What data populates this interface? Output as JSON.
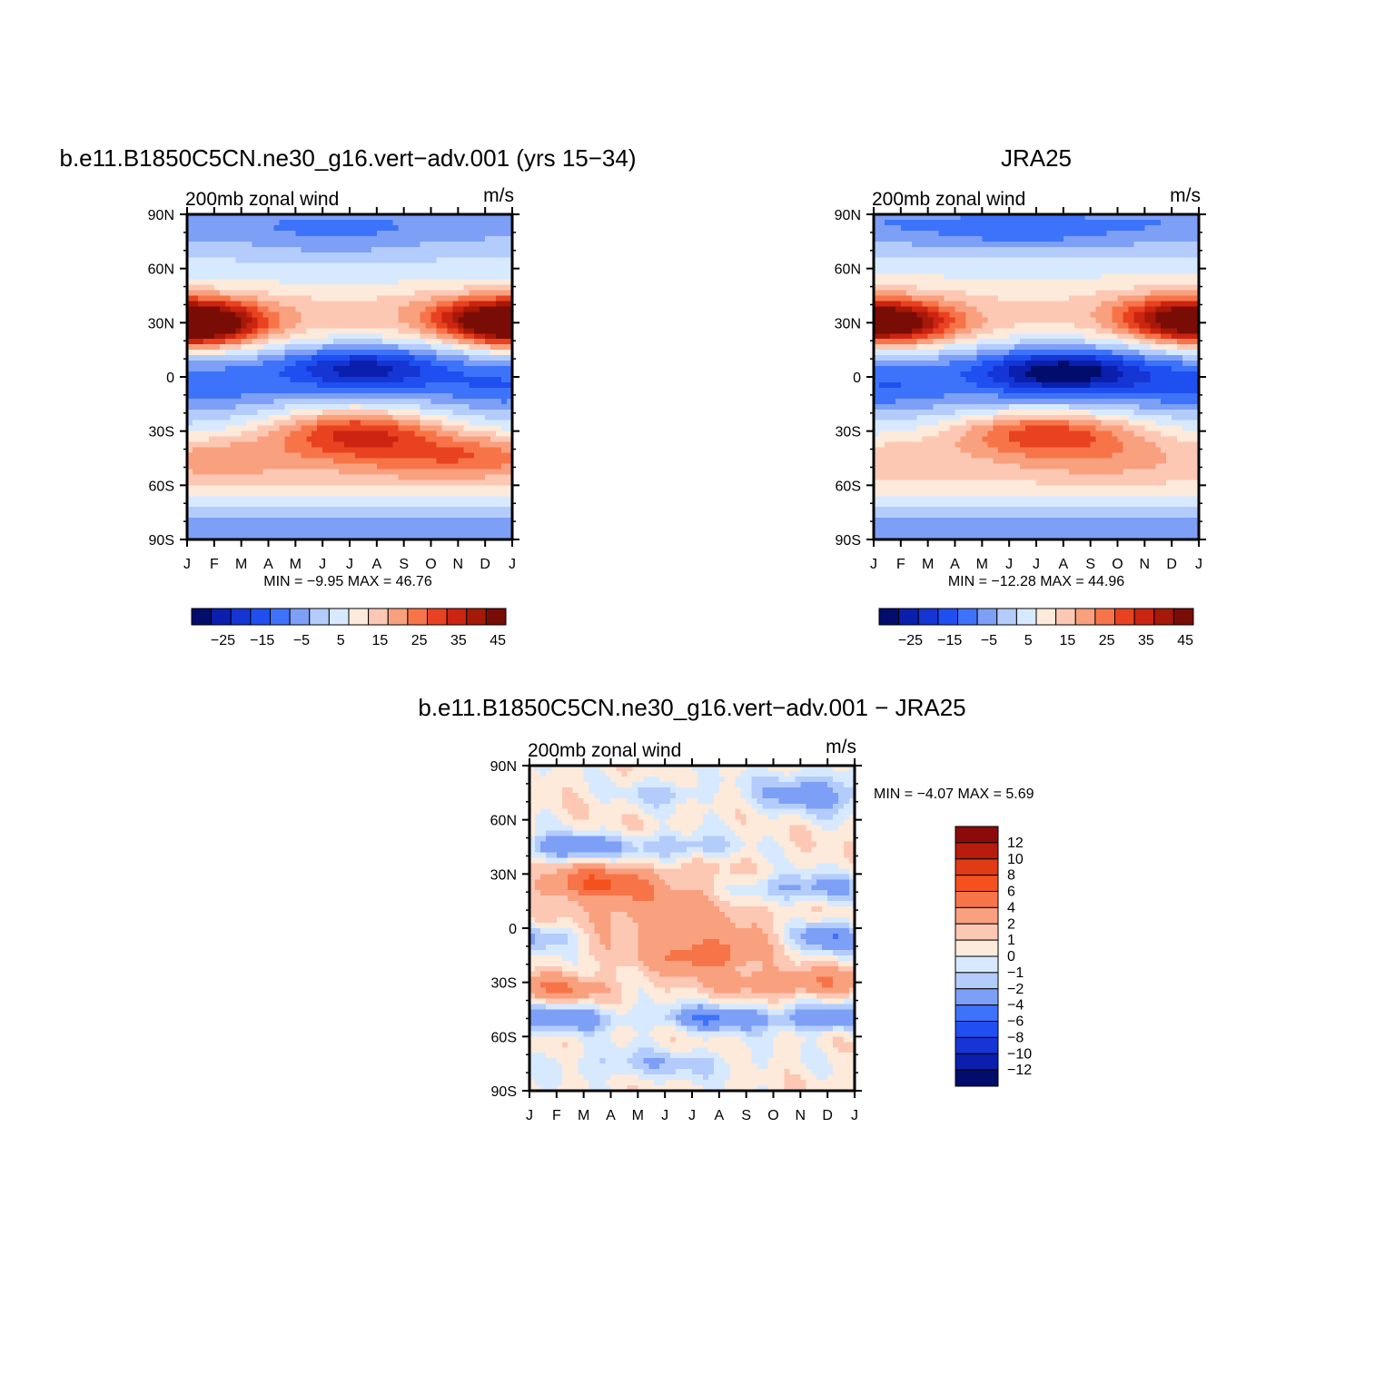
{
  "colors": {
    "abs_levels": [
      "#000d6b",
      "#0a1fae",
      "#1535d4",
      "#1f4ff0",
      "#3d73fa",
      "#7d9ff6",
      "#b3ccfc",
      "#d7e9fe",
      "#fdeadb",
      "#fcc8b4",
      "#f9a07e",
      "#f77449",
      "#e84221",
      "#cb2410",
      "#a61808",
      "#7a0c06"
    ],
    "diff_levels": [
      "#000d6b",
      "#0a1fae",
      "#1535d4",
      "#1f4ff0",
      "#3d73fa",
      "#7d9ff6",
      "#b3ccfc",
      "#d7e9fe",
      "#fdeadb",
      "#fcc8b4",
      "#f9a07e",
      "#f77449",
      "#f4511e",
      "#e03a16",
      "#b71c0c",
      "#8b0a0a"
    ]
  },
  "chart_data": [
    {
      "type": "heatmap",
      "title": "b.e11.B1850C5CN.ne30_g16.vert−adv.001 (yrs 15−34)",
      "left_label": "200mb zonal wind",
      "right_label": "m/s",
      "x_tick_labels": [
        "J",
        "F",
        "M",
        "A",
        "M",
        "J",
        "J",
        "A",
        "S",
        "O",
        "N",
        "D",
        "J"
      ],
      "y_tick_labels": [
        "90N",
        "60N",
        "30N",
        "0",
        "30S",
        "60S",
        "90S"
      ],
      "xlim": [
        0,
        12
      ],
      "ylim": [
        -90,
        90
      ],
      "stats": "MIN =   −9.95 MAX =   46.76",
      "colorbar_labels": [
        "−25",
        "−15",
        "−5",
        "5",
        "15",
        "25",
        "35",
        "45"
      ],
      "levels": [
        -30,
        -25,
        -20,
        -15,
        -10,
        -5,
        0,
        5,
        10,
        15,
        20,
        25,
        30,
        35,
        40,
        45
      ],
      "min": -9.95,
      "max": 46.76
    },
    {
      "type": "heatmap",
      "title": "JRA25",
      "left_label": "200mb zonal wind",
      "right_label": "m/s",
      "x_tick_labels": [
        "J",
        "F",
        "M",
        "A",
        "M",
        "J",
        "J",
        "A",
        "S",
        "O",
        "N",
        "D",
        "J"
      ],
      "y_tick_labels": [
        "90N",
        "60N",
        "30N",
        "0",
        "30S",
        "60S",
        "90S"
      ],
      "xlim": [
        0,
        12
      ],
      "ylim": [
        -90,
        90
      ],
      "stats": "MIN =  −12.28 MAX =   44.96",
      "colorbar_labels": [
        "−25",
        "−15",
        "−5",
        "5",
        "15",
        "25",
        "35",
        "45"
      ],
      "levels": [
        -30,
        -25,
        -20,
        -15,
        -10,
        -5,
        0,
        5,
        10,
        15,
        20,
        25,
        30,
        35,
        40,
        45
      ],
      "min": -12.28,
      "max": 44.96
    },
    {
      "type": "heatmap",
      "title": "b.e11.B1850C5CN.ne30_g16.vert−adv.001 − JRA25",
      "left_label": "200mb zonal wind",
      "right_label": "m/s",
      "x_tick_labels": [
        "J",
        "F",
        "M",
        "A",
        "M",
        "J",
        "J",
        "A",
        "S",
        "O",
        "N",
        "D",
        "J"
      ],
      "y_tick_labels": [
        "90N",
        "60N",
        "30N",
        "0",
        "30S",
        "60S",
        "90S"
      ],
      "xlim": [
        0,
        12
      ],
      "ylim": [
        -90,
        90
      ],
      "stats": "MIN =   −4.07 MAX =    5.69",
      "colorbar_labels": [
        "12",
        "10",
        "8",
        "6",
        "4",
        "2",
        "1",
        "0",
        "−1",
        "−2",
        "−4",
        "−6",
        "−8",
        "−10",
        "−12"
      ],
      "levels": [
        -12,
        -10,
        -8,
        -6,
        -4,
        -2,
        -1,
        0,
        1,
        2,
        4,
        6,
        8,
        10,
        12
      ],
      "min": -4.07,
      "max": 5.69
    }
  ]
}
